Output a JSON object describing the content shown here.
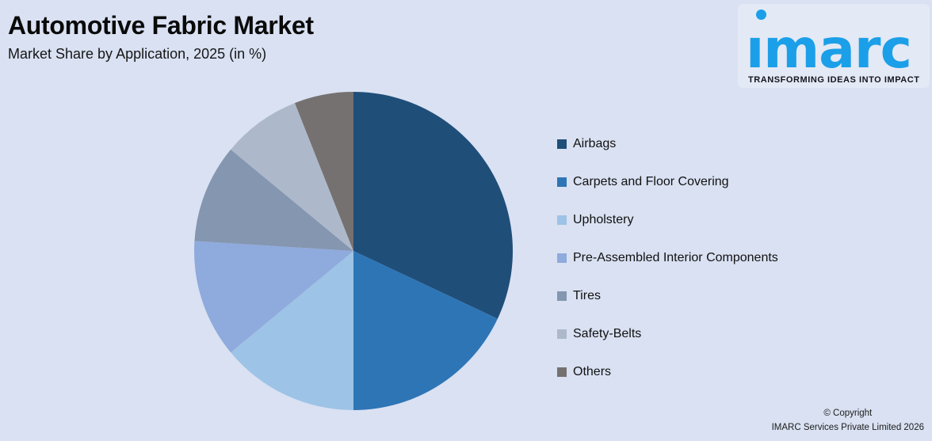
{
  "page": {
    "background": "#D9E1F2"
  },
  "header": {
    "title": "Automotive Fabric Market",
    "subtitle": "Market Share by Application, 2025 (in %)"
  },
  "logo": {
    "brand": "imarc",
    "brand_display": "ımarc",
    "tagline": "TRANSFORMING IDEAS INTO IMPACT",
    "brand_color": "#1B9FE8",
    "tagline_color": "#15151F"
  },
  "footer": {
    "line1": "© Copyright",
    "line2": "IMARC Services Private Limited 2026"
  },
  "chart_data": {
    "type": "pie",
    "title": "Automotive Fabric Market",
    "subtitle": "Market Share by Application, 2025 (in %)",
    "unit": "%",
    "start_angle": "12 o'clock",
    "direction": "clockwise",
    "legend_position": "right",
    "data_labels": "none",
    "series": [
      {
        "name": "Airbags",
        "value": 32,
        "color": "#1F4E79"
      },
      {
        "name": "Carpets and Floor Covering",
        "value": 18,
        "color": "#2E75B6"
      },
      {
        "name": "Upholstery",
        "value": 14,
        "color": "#9DC3E6"
      },
      {
        "name": "Pre-Assembled Interior Components",
        "value": 12,
        "color": "#8FAADC"
      },
      {
        "name": "Tires",
        "value": 10,
        "color": "#8496B0"
      },
      {
        "name": "Safety-Belts",
        "value": 8,
        "color": "#ADB9CA"
      },
      {
        "name": "Others",
        "value": 6,
        "color": "#757170"
      }
    ]
  }
}
